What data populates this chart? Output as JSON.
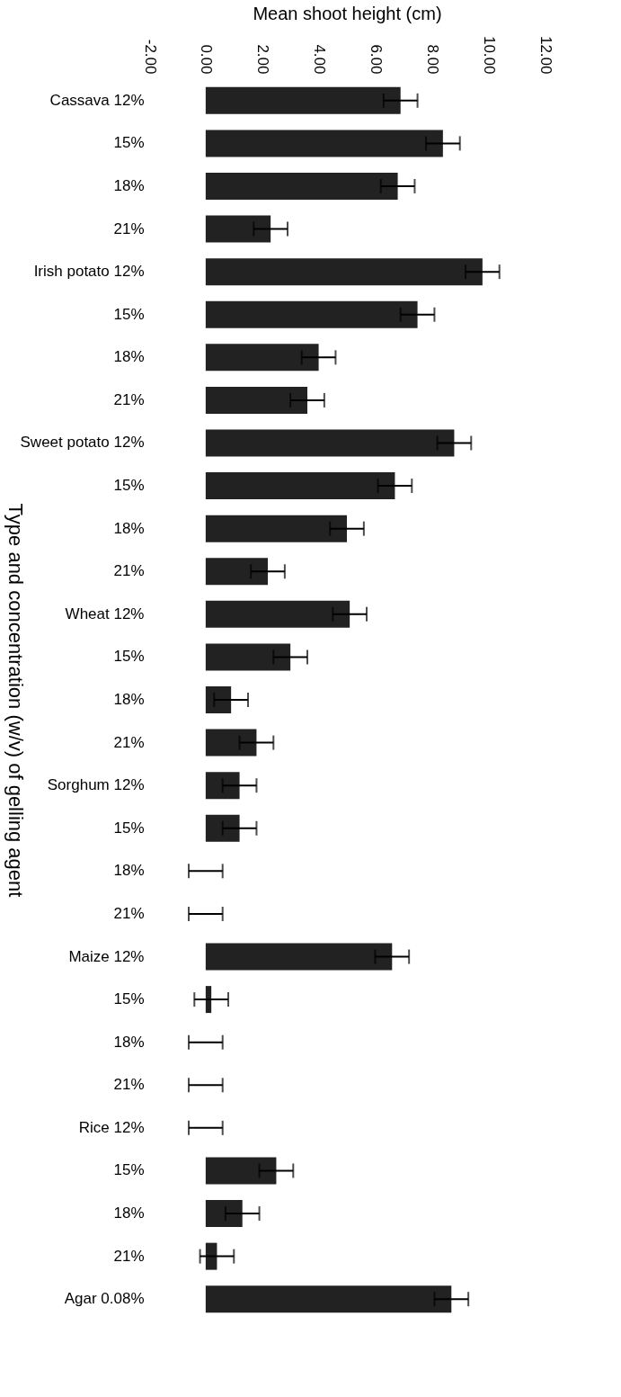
{
  "chart_data": {
    "type": "bar",
    "orientation": "horizontal",
    "xlabel": "Mean shoot height (cm)",
    "ylabel": "Type and concentration (w/v) of gelling agent",
    "categories": [
      "Cassava 12%",
      "15%",
      "18%",
      "21%",
      "Irish potato 12%",
      "15%",
      "18%",
      "21%",
      "Sweet potato 12%",
      "15%",
      "18%",
      "21%",
      "Wheat 12%",
      "15%",
      "18%",
      "21%",
      "Sorghum 12%",
      "15%",
      "18%",
      "21%",
      "Maize 12%",
      "15%",
      "18%",
      "21%",
      "Rice 12%",
      "15%",
      "18%",
      "21%",
      "Agar 0.08%"
    ],
    "values": [
      6.9,
      8.4,
      6.8,
      2.3,
      9.8,
      7.5,
      4.0,
      3.6,
      8.8,
      6.7,
      5.0,
      2.2,
      5.1,
      3.0,
      0.9,
      1.8,
      1.2,
      1.2,
      0,
      0,
      6.6,
      0.2,
      0,
      0,
      0,
      2.5,
      1.3,
      0.4,
      8.7
    ],
    "errors": [
      0.6,
      0.6,
      0.6,
      0.6,
      0.6,
      0.6,
      0.6,
      0.6,
      0.6,
      0.6,
      0.6,
      0.6,
      0.6,
      0.6,
      0.6,
      0.6,
      0.6,
      0.6,
      0.6,
      0.6,
      0.6,
      0.6,
      0.6,
      0.6,
      0.6,
      0.6,
      0.6,
      0.6,
      0.6
    ],
    "color": "#222222",
    "xlim": [
      -2,
      12
    ],
    "xticks": [
      {
        "value": -2,
        "label": "-2.00"
      },
      {
        "value": 0,
        "label": "0.00"
      },
      {
        "value": 2,
        "label": "2.00"
      },
      {
        "value": 4,
        "label": "4.00"
      },
      {
        "value": 6,
        "label": "6.00"
      },
      {
        "value": 8,
        "label": "8.00"
      },
      {
        "value": 10,
        "label": "10.00"
      },
      {
        "value": 12,
        "label": "12.00"
      }
    ],
    "grid": false
  }
}
